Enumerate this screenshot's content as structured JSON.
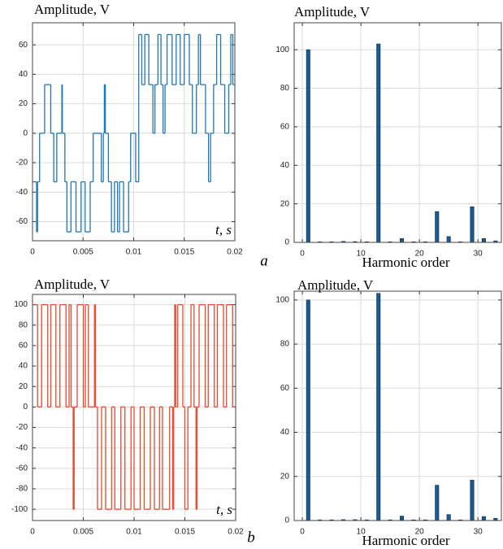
{
  "chart_data": [
    {
      "type": "step",
      "title": "Amplitude, V",
      "xlabel": "t, s",
      "color": "#1f77b4",
      "x": [
        0,
        0.0004,
        0.0005,
        0.0007,
        0.0012,
        0.0018,
        0.0021,
        0.0024,
        0.0029,
        0.00295,
        0.0032,
        0.0034,
        0.0038,
        0.0043,
        0.0048,
        0.0052,
        0.0057,
        0.006,
        0.0068,
        0.007,
        0.0071,
        0.0072,
        0.0075,
        0.0078,
        0.0081,
        0.0084,
        0.0086,
        0.009,
        0.0095,
        0.0097,
        0.0102,
        0.0105,
        0.0108,
        0.0111,
        0.0115,
        0.0119,
        0.0121,
        0.0124,
        0.0127,
        0.0129,
        0.0131,
        0.0133,
        0.0138,
        0.0142,
        0.0146,
        0.015,
        0.0155,
        0.0158,
        0.0162,
        0.0164,
        0.0166,
        0.0171,
        0.0174,
        0.0176,
        0.0179,
        0.0182,
        0.0186,
        0.019,
        0.0194,
        0.0196,
        0.0198,
        0.02
      ],
      "values": [
        -33,
        -67,
        -33,
        0,
        33,
        0,
        -33,
        0,
        33,
        0,
        -33,
        -67,
        -33,
        -67,
        -33,
        -67,
        -33,
        0,
        -33,
        0,
        33,
        0,
        -33,
        -67,
        -33,
        -67,
        -33,
        -67,
        -33,
        0,
        -33,
        67,
        33,
        67,
        33,
        0,
        33,
        67,
        33,
        0,
        33,
        67,
        33,
        67,
        33,
        67,
        33,
        0,
        33,
        67,
        33,
        0,
        -33,
        0,
        33,
        67,
        33,
        0,
        33,
        67,
        33,
        33
      ],
      "xlim": [
        0,
        0.02
      ],
      "xticks": [
        0,
        0.005,
        0.01,
        0.015,
        0.02
      ],
      "ylim": [
        -73,
        75
      ],
      "yticks": [
        -60,
        -40,
        -20,
        0,
        20,
        40,
        60
      ],
      "grid": true
    },
    {
      "type": "bar",
      "title": "Amplitude, V",
      "xlabel": "Harmonic order",
      "color": "#1a5a8f",
      "x": [
        1,
        3,
        5,
        7,
        9,
        11,
        13,
        15,
        17,
        19,
        21,
        23,
        25,
        27,
        29,
        31,
        33
      ],
      "values": [
        100,
        0.3,
        0.3,
        0.5,
        0.4,
        0.3,
        103,
        0.3,
        2,
        0.3,
        0.3,
        16,
        3,
        0.3,
        18.5,
        2,
        0.8
      ],
      "xlim": [
        -1.4,
        34
      ],
      "xticks": [
        0,
        10,
        20,
        30
      ],
      "ylim": [
        0,
        114
      ],
      "yticks": [
        0,
        20,
        40,
        60,
        80,
        100
      ],
      "grid": true
    },
    {
      "type": "step",
      "title": "Amplitude, V",
      "xlabel": "t, s",
      "color": "#e8472c",
      "x": [
        0,
        0.0005,
        0.0009,
        0.0015,
        0.0018,
        0.0023,
        0.0027,
        0.0033,
        0.0036,
        0.0038,
        0.004,
        0.0041,
        0.0044,
        0.005,
        0.0052,
        0.0055,
        0.0061,
        0.0062,
        0.0064,
        0.0068,
        0.0072,
        0.0078,
        0.0081,
        0.0087,
        0.0091,
        0.0097,
        0.01,
        0.0106,
        0.011,
        0.0116,
        0.012,
        0.0125,
        0.0128,
        0.0135,
        0.0138,
        0.0139,
        0.014,
        0.0141,
        0.0143,
        0.0148,
        0.015,
        0.0153,
        0.0156,
        0.0159,
        0.0161,
        0.0162,
        0.0164,
        0.017,
        0.0173,
        0.0179,
        0.0182,
        0.0188,
        0.0191,
        0.0197,
        0.02
      ],
      "values": [
        100,
        0,
        100,
        0,
        100,
        0,
        100,
        0,
        100,
        0,
        -100,
        0,
        100,
        0,
        100,
        0,
        100,
        0,
        -100,
        0,
        -100,
        0,
        -100,
        0,
        -100,
        0,
        -100,
        0,
        -100,
        0,
        -100,
        0,
        -100,
        0,
        -100,
        0,
        100,
        0,
        100,
        0,
        -100,
        0,
        100,
        0,
        -100,
        0,
        100,
        0,
        100,
        0,
        100,
        0,
        100,
        0,
        0
      ],
      "xlim": [
        0,
        0.02
      ],
      "xticks": [
        0,
        0.005,
        0.01,
        0.015,
        0.02
      ],
      "ylim": [
        -111,
        110
      ],
      "yticks": [
        -100,
        -80,
        -60,
        -40,
        -20,
        0,
        20,
        40,
        60,
        80,
        100
      ],
      "grid": true
    },
    {
      "type": "bar",
      "title": "Amplitude, V",
      "xlabel": "Harmonic order",
      "color": "#1a5a8f",
      "x": [
        1,
        3,
        5,
        7,
        9,
        11,
        13,
        15,
        17,
        19,
        21,
        23,
        25,
        27,
        29,
        31,
        33
      ],
      "values": [
        100,
        0.3,
        0.3,
        0.4,
        0.4,
        0.3,
        103,
        0.3,
        2,
        0.3,
        0.3,
        16,
        2.7,
        0.3,
        18.3,
        1.8,
        1
      ],
      "xlim": [
        -1.4,
        34
      ],
      "xticks": [
        0,
        10,
        20,
        30
      ],
      "ylim": [
        0,
        104
      ],
      "yticks": [
        0,
        20,
        40,
        60,
        80,
        100
      ],
      "grid": true
    }
  ],
  "captions": [
    "a",
    "b"
  ]
}
